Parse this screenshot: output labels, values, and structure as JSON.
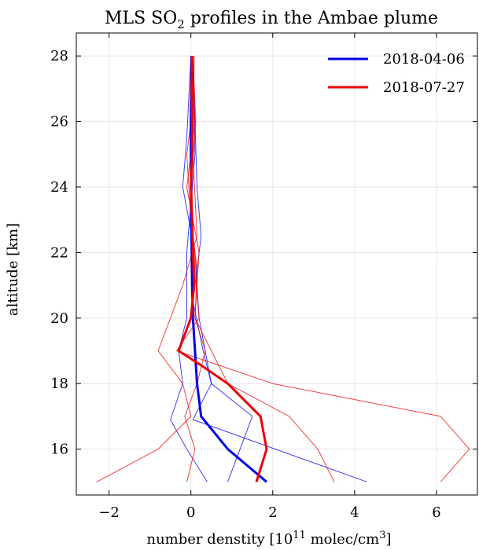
{
  "chart_data": {
    "type": "line",
    "title": {
      "pre": "MLS SO",
      "sub": "2",
      "post": " profiles in the Ambae plume"
    },
    "xlabel": {
      "pre": "number denstity [10",
      "sup1": "11",
      "mid": " molec/cm",
      "sup2": "3",
      "post": "]"
    },
    "ylabel": "altitude [km]",
    "xlim": [
      -2.8,
      7.0
    ],
    "ylim": [
      14.6,
      28.7
    ],
    "xticks": [
      -2,
      0,
      2,
      4,
      6
    ],
    "yticks": [
      16,
      18,
      20,
      22,
      24,
      26,
      28
    ],
    "xtick_labels": [
      "−2",
      "0",
      "2",
      "4",
      "6"
    ],
    "ytick_labels": [
      "16",
      "18",
      "20",
      "22",
      "24",
      "26",
      "28"
    ],
    "grid": true,
    "legend_position": "top-right",
    "colors": {
      "blue": "#0000ee",
      "red": "#ee0000"
    },
    "series": [
      {
        "name": "2018-04-06",
        "color": "#0000ee",
        "role": "mean",
        "points": [
          [
            1.85,
            15.0
          ],
          [
            0.9,
            16.0
          ],
          [
            0.25,
            17.0
          ],
          [
            0.15,
            18.0
          ],
          [
            0.1,
            19.0
          ],
          [
            0.05,
            20.0
          ],
          [
            0.03,
            21.0
          ],
          [
            0.02,
            22.0
          ],
          [
            0.01,
            23.0
          ],
          [
            0.01,
            24.0
          ],
          [
            0.0,
            25.0
          ],
          [
            0.0,
            26.0
          ],
          [
            0.01,
            27.0
          ],
          [
            0.02,
            28.0
          ]
        ]
      },
      {
        "name": "2018-07-27",
        "color": "#ee0000",
        "role": "mean",
        "points": [
          [
            1.6,
            15.0
          ],
          [
            1.85,
            16.0
          ],
          [
            1.7,
            17.0
          ],
          [
            0.9,
            18.0
          ],
          [
            0.2,
            18.6
          ],
          [
            -0.3,
            19.0
          ],
          [
            0.0,
            20.0
          ],
          [
            0.08,
            21.0
          ],
          [
            0.05,
            22.0
          ],
          [
            0.03,
            23.0
          ],
          [
            0.0,
            24.0
          ],
          [
            0.03,
            25.0
          ],
          [
            0.03,
            26.0
          ],
          [
            0.02,
            27.0
          ],
          [
            0.03,
            28.0
          ]
        ]
      },
      {
        "color": "#0000ee",
        "role": "individual",
        "points": [
          [
            4.3,
            15.0
          ],
          [
            0.05,
            16.9
          ],
          [
            0.5,
            18.0
          ],
          [
            0.3,
            19.0
          ],
          [
            0.05,
            20.5
          ],
          [
            0.25,
            22.5
          ],
          [
            0.15,
            24.0
          ],
          [
            0.1,
            26.0
          ],
          [
            0.05,
            28.0
          ]
        ]
      },
      {
        "color": "#0000ee",
        "role": "individual",
        "points": [
          [
            0.9,
            15.0
          ],
          [
            1.2,
            16.0
          ],
          [
            1.5,
            17.0
          ],
          [
            0.5,
            18.0
          ],
          [
            0.2,
            20.0
          ],
          [
            0.1,
            22.0
          ],
          [
            -0.2,
            24.0
          ],
          [
            -0.1,
            25.5
          ],
          [
            0.0,
            28.0
          ]
        ]
      },
      {
        "color": "#0000ee",
        "role": "individual",
        "points": [
          [
            0.4,
            15.0
          ],
          [
            -0.1,
            16.0
          ],
          [
            -0.5,
            16.9
          ],
          [
            -0.2,
            18.0
          ],
          [
            -0.3,
            19.0
          ],
          [
            -0.1,
            20.0
          ],
          [
            -0.1,
            22.0
          ],
          [
            0.1,
            25.0
          ],
          [
            0.05,
            28.0
          ]
        ]
      },
      {
        "color": "#ee0000",
        "role": "individual",
        "points": [
          [
            -2.3,
            15.0
          ],
          [
            -0.8,
            16.0
          ],
          [
            0.0,
            17.0
          ],
          [
            -0.2,
            18.0
          ],
          [
            -0.8,
            19.0
          ],
          [
            -0.2,
            21.0
          ],
          [
            0.15,
            22.5
          ],
          [
            0.05,
            25.0
          ],
          [
            0.08,
            28.0
          ]
        ]
      },
      {
        "color": "#ee0000",
        "role": "individual",
        "points": [
          [
            6.1,
            15.0
          ],
          [
            6.8,
            16.0
          ],
          [
            6.1,
            17.0
          ],
          [
            2.0,
            18.0
          ],
          [
            -0.35,
            19.0
          ],
          [
            0.2,
            20.0
          ],
          [
            0.1,
            21.5
          ],
          [
            0.0,
            24.0
          ],
          [
            0.12,
            26.0
          ],
          [
            0.05,
            28.0
          ]
        ]
      },
      {
        "color": "#ee0000",
        "role": "individual",
        "points": [
          [
            3.5,
            15.0
          ],
          [
            3.1,
            16.0
          ],
          [
            2.4,
            17.0
          ],
          [
            0.9,
            18.0
          ],
          [
            0.1,
            20.0
          ],
          [
            0.2,
            22.0
          ],
          [
            -0.1,
            24.0
          ],
          [
            0.1,
            26.0
          ],
          [
            0.0,
            28.0
          ]
        ]
      },
      {
        "color": "#ee0000",
        "role": "individual",
        "points": [
          [
            -0.1,
            15.0
          ],
          [
            0.1,
            16.0
          ],
          [
            -0.15,
            17.0
          ],
          [
            0.15,
            18.0
          ],
          [
            0.35,
            19.0
          ],
          [
            0.1,
            20.0
          ],
          [
            0.15,
            21.5
          ],
          [
            0.0,
            23.0
          ],
          [
            -0.1,
            25.0
          ],
          [
            0.05,
            26.5
          ],
          [
            0.0,
            28.0
          ]
        ]
      }
    ]
  }
}
